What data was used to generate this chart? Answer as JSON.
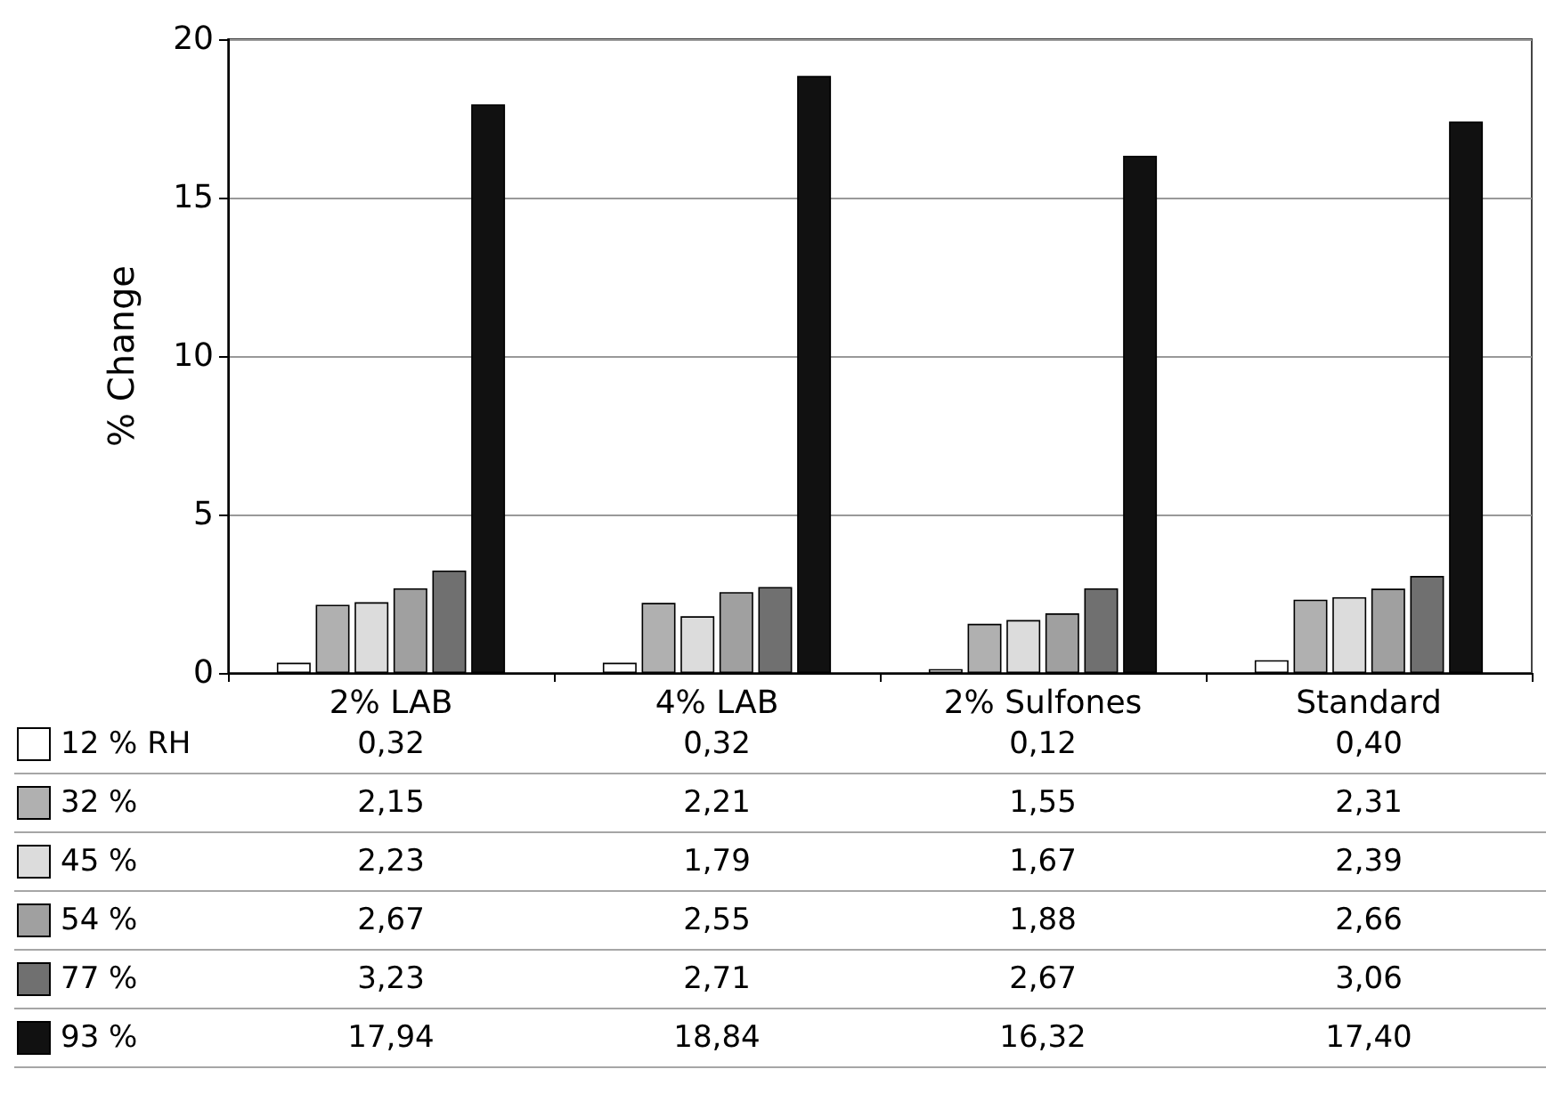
{
  "chart_data": {
    "type": "bar",
    "ylabel": "% Change",
    "categories": [
      "2% LAB",
      "4% LAB",
      "2% Sulfones",
      "Standard"
    ],
    "series": [
      {
        "name": "12 % RH",
        "color": "#ffffff",
        "values": [
          0.32,
          0.32,
          0.12,
          0.4
        ],
        "value_labels": [
          "0,32",
          "0,32",
          "0,12",
          "0,40"
        ]
      },
      {
        "name": "32 %",
        "color": "#b0b0b0",
        "values": [
          2.15,
          2.21,
          1.55,
          2.31
        ],
        "value_labels": [
          "2,15",
          "2,21",
          "1,55",
          "2,31"
        ]
      },
      {
        "name": "45 %",
        "color": "#dcdcdc",
        "values": [
          2.23,
          1.79,
          1.67,
          2.39
        ],
        "value_labels": [
          "2,23",
          "1,79",
          "1,67",
          "2,39"
        ]
      },
      {
        "name": "54 %",
        "color": "#a0a0a0",
        "values": [
          2.67,
          2.55,
          1.88,
          2.66
        ],
        "value_labels": [
          "2,67",
          "2,55",
          "1,88",
          "2,66"
        ]
      },
      {
        "name": "77 %",
        "color": "#707070",
        "values": [
          3.23,
          2.71,
          2.67,
          3.06
        ],
        "value_labels": [
          "3,23",
          "2,71",
          "2,67",
          "3,06"
        ]
      },
      {
        "name": "93 %",
        "color": "#111111",
        "values": [
          17.94,
          18.84,
          16.32,
          17.4
        ],
        "value_labels": [
          "17,94",
          "18,84",
          "16,32",
          "17,40"
        ]
      }
    ],
    "ylim": [
      0,
      20
    ],
    "yticks": [
      0,
      5,
      10,
      15,
      20
    ],
    "grid": "y",
    "legend": "bottom left"
  }
}
